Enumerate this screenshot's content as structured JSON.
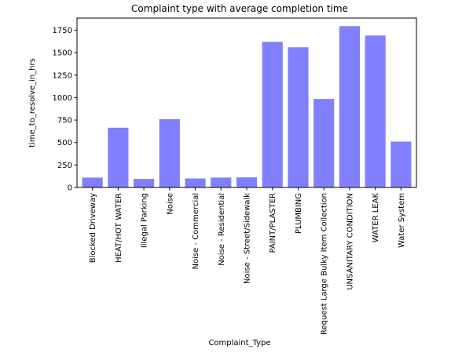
{
  "chart_data": {
    "type": "bar",
    "title": "Complaint type with average completion time",
    "xlabel": "Complaint_Type",
    "ylabel": "time_to_resolve_in_hrs",
    "categories": [
      "Blocked Driveway",
      "HEAT/HOT WATER",
      "Illegal Parking",
      "Noise",
      "Noise - Commercial",
      "Noise - Residential",
      "Noise - Street/Sidewalk",
      "PAINT/PLASTER",
      "PLUMBING",
      "Request Large Bulky Item Collection",
      "UNSANITARY CONDITION",
      "WATER LEAK",
      "Water System"
    ],
    "values": [
      110,
      665,
      95,
      760,
      100,
      110,
      112,
      1620,
      1560,
      985,
      1795,
      1690,
      510
    ],
    "ylim": [
      0,
      1885
    ],
    "yticks": [
      0,
      250,
      500,
      750,
      1000,
      1250,
      1500,
      1750
    ],
    "bar_color": "#8080ff",
    "grid": false,
    "legend": "none"
  }
}
